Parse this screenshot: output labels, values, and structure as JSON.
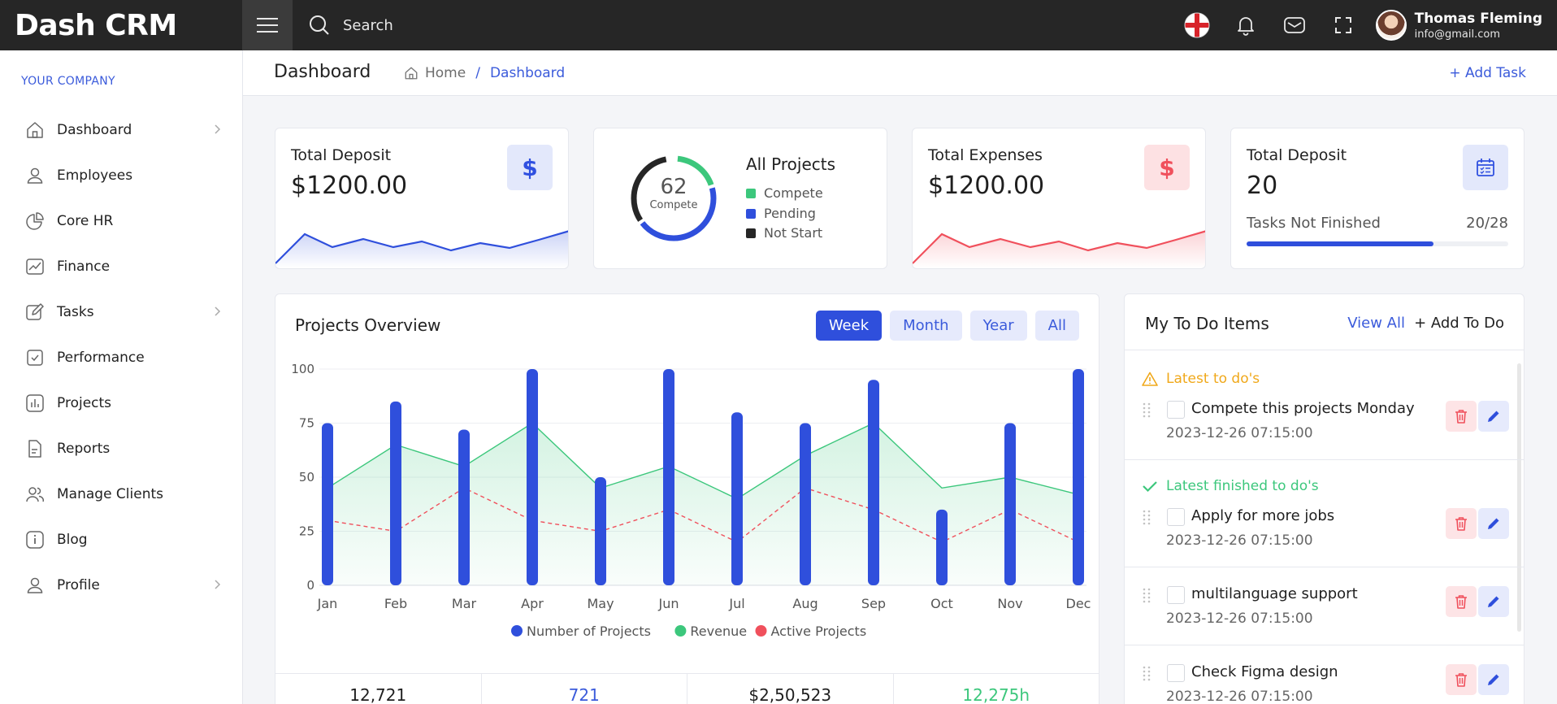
{
  "app": {
    "brand": "Dash CRM"
  },
  "topbar": {
    "search_label": "Search",
    "user_name": "Thomas Fleming",
    "user_email": "info@gmail.com"
  },
  "sidebar": {
    "company": "YOUR COMPANY",
    "items": [
      {
        "label": "Dashboard",
        "icon": "home-icon",
        "has_chevron": true
      },
      {
        "label": "Employees",
        "icon": "user-icon",
        "has_chevron": false
      },
      {
        "label": "Core HR",
        "icon": "pie-icon",
        "has_chevron": false
      },
      {
        "label": "Finance",
        "icon": "chart-line-icon",
        "has_chevron": false
      },
      {
        "label": "Tasks",
        "icon": "edit-icon",
        "has_chevron": true
      },
      {
        "label": "Performance",
        "icon": "check-square-icon",
        "has_chevron": false
      },
      {
        "label": "Projects",
        "icon": "bar-chart-icon",
        "has_chevron": false
      },
      {
        "label": "Reports",
        "icon": "file-icon",
        "has_chevron": false
      },
      {
        "label": "Manage Clients",
        "icon": "users-icon",
        "has_chevron": false
      },
      {
        "label": "Blog",
        "icon": "info-icon",
        "has_chevron": false
      },
      {
        "label": "Profile",
        "icon": "user-icon",
        "has_chevron": true
      }
    ]
  },
  "header": {
    "title": "Dashboard",
    "breadcrumb": {
      "home": "Home",
      "separator": "/",
      "current": "Dashboard"
    },
    "add_task": "+ Add Task"
  },
  "stats": {
    "deposit": {
      "title": "Total Deposit",
      "value": "$1200.00",
      "badge": "$"
    },
    "projects": {
      "title": "All Projects",
      "center_value": "62",
      "center_label": "Compete",
      "legend": [
        "Compete",
        "Pending",
        "Not Start"
      ],
      "colors": [
        "#3cc77c",
        "#2f4fdc",
        "#262626"
      ]
    },
    "expenses": {
      "title": "Total Expenses",
      "value": "$1200.00",
      "badge": "$"
    },
    "deposit_tasks": {
      "title": "Total Deposit",
      "value": "20",
      "label": "Tasks Not Finished",
      "count": "20/28",
      "progress_fraction": 0.714
    }
  },
  "overview": {
    "title": "Projects Overview",
    "tabs": [
      "Week",
      "Month",
      "Year",
      "All"
    ],
    "active_tab": "Week",
    "summary": [
      "12,721",
      "721",
      "$2,50,523",
      "12,275h"
    ],
    "summary_colors": [
      "#1f1f1f",
      "#3b5bdb",
      "#1f1f1f",
      "#3cc77c"
    ]
  },
  "chart_data": {
    "type": "bar",
    "categories": [
      "Jan",
      "Feb",
      "Mar",
      "Apr",
      "May",
      "Jun",
      "Jul",
      "Aug",
      "Sep",
      "Oct",
      "Nov",
      "Dec"
    ],
    "y_ticks": [
      0,
      25,
      50,
      75,
      100
    ],
    "ylim": [
      0,
      100
    ],
    "legend_position": "bottom",
    "series": [
      {
        "name": "Number of Projects",
        "kind": "bar",
        "color": "#2f4fdc",
        "values": [
          75,
          85,
          72,
          100,
          50,
          100,
          80,
          75,
          95,
          35,
          75,
          100
        ]
      },
      {
        "name": "Revenue",
        "kind": "area",
        "color": "#3cc77c",
        "values": [
          45,
          65,
          55,
          75,
          45,
          55,
          40,
          60,
          75,
          45,
          50,
          42
        ]
      },
      {
        "name": "Active Projects",
        "kind": "dashed-line",
        "color": "#f0505c",
        "values": [
          30,
          25,
          45,
          30,
          25,
          35,
          20,
          45,
          35,
          20,
          35,
          20
        ]
      }
    ]
  },
  "todo": {
    "title": "My To Do Items",
    "view_all": "View All",
    "add": "+ Add To Do",
    "section_latest": "Latest to do's",
    "section_finished": "Latest finished to do's",
    "items": [
      {
        "text": "Compete this projects Monday",
        "time": "2023-12-26 07:15:00"
      },
      {
        "text": "Apply for more jobs",
        "time": "2023-12-26 07:15:00"
      },
      {
        "text": "multilanguage support",
        "time": "2023-12-26 07:15:00"
      },
      {
        "text": "Check Figma design",
        "time": "2023-12-26 07:15:00"
      }
    ]
  }
}
